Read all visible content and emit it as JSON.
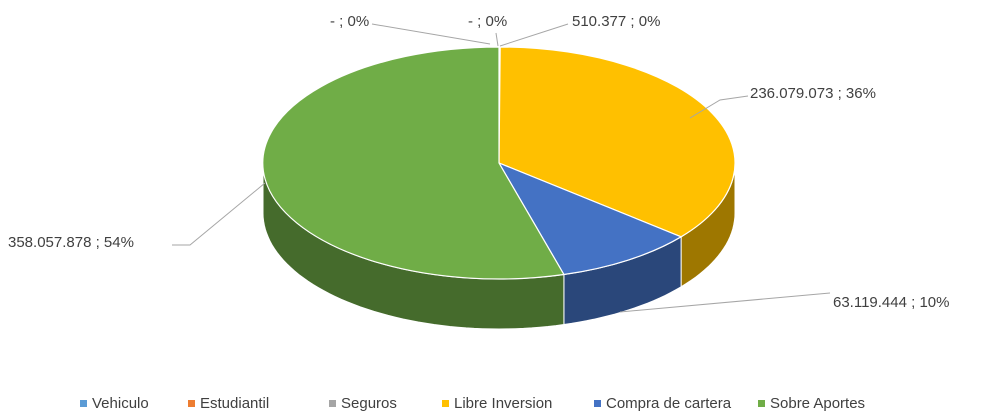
{
  "chart_data": {
    "type": "pie3d",
    "categories": [
      "Vehiculo",
      "Estudiantil",
      "Seguros",
      "Libre Inversion",
      "Compra de cartera",
      "Sobre Aportes"
    ],
    "values": [
      0,
      0,
      510377,
      236079073,
      63119444,
      358057878
    ],
    "value_labels": [
      "- ; 0%",
      "- ; 0%",
      "510.377 ; 0%",
      "236.079.073 ; 36%",
      "63.119.444 ; 10%",
      "358.057.878 ; 54%"
    ],
    "colors": [
      "#5b9bd5",
      "#ed7d31",
      "#a5a5a5",
      "#ffc000",
      "#4472c4",
      "#70ad47"
    ],
    "legend": "bottom"
  }
}
